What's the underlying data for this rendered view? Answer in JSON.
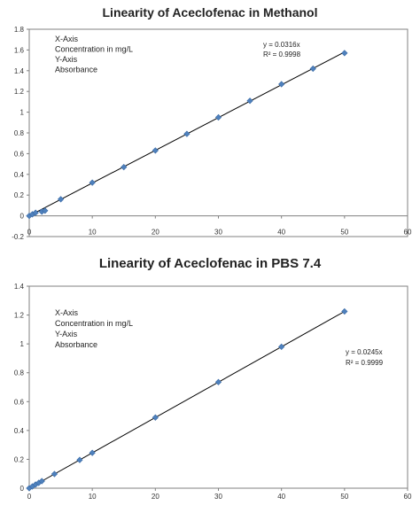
{
  "chart_data": [
    {
      "type": "scatter",
      "title": "Linearity of Aceclofenac in Methanol",
      "xlim": [
        0,
        60
      ],
      "ylim": [
        -0.2,
        1.8
      ],
      "xticks": [
        0,
        10,
        20,
        30,
        40,
        50,
        60
      ],
      "yticks": [
        -0.2,
        0,
        0.2,
        0.4,
        0.6,
        0.8,
        1,
        1.2,
        1.4,
        1.6,
        1.8
      ],
      "ytick_labels": [
        "-0.2",
        "0",
        "0.2",
        "0.4",
        "0.6",
        "0.8",
        "1",
        "1.2",
        "1.4",
        "1.6",
        "1.8"
      ],
      "points": [
        {
          "x": 0,
          "y": 0
        },
        {
          "x": 0.5,
          "y": 0.015
        },
        {
          "x": 1,
          "y": 0.03
        },
        {
          "x": 2,
          "y": 0.04
        },
        {
          "x": 2.5,
          "y": 0.05
        },
        {
          "x": 5,
          "y": 0.16
        },
        {
          "x": 10,
          "y": 0.32
        },
        {
          "x": 15,
          "y": 0.47
        },
        {
          "x": 20,
          "y": 0.63
        },
        {
          "x": 25,
          "y": 0.79
        },
        {
          "x": 30,
          "y": 0.95
        },
        {
          "x": 35,
          "y": 1.11
        },
        {
          "x": 40,
          "y": 1.27
        },
        {
          "x": 45,
          "y": 1.42
        },
        {
          "x": 50,
          "y": 1.57
        }
      ],
      "trendline": {
        "slope": 0.0316,
        "x_end": 50
      },
      "note_lines": [
        "X-Axis",
        "Concentration in mg/L",
        "Y-Axis",
        "Absorbance"
      ],
      "equation_lines": [
        "y = 0.0316x",
        "R² = 0.9998"
      ],
      "grid": false,
      "colors": {
        "marker": "#4f81bd",
        "line": "#000000"
      }
    },
    {
      "type": "scatter",
      "title": "Linearity of Aceclofenac in PBS 7.4",
      "xlim": [
        0,
        60
      ],
      "ylim": [
        0,
        1.4
      ],
      "xticks": [
        0,
        10,
        20,
        30,
        40,
        50,
        60
      ],
      "yticks": [
        0,
        0.2,
        0.4,
        0.6,
        0.8,
        1,
        1.2,
        1.4
      ],
      "ytick_labels": [
        "0",
        "0.2",
        "0.4",
        "0.6",
        "0.8",
        "1",
        "1.2",
        "1.4"
      ],
      "points": [
        {
          "x": 0,
          "y": 0
        },
        {
          "x": 0.5,
          "y": 0.012
        },
        {
          "x": 1,
          "y": 0.025
        },
        {
          "x": 1.5,
          "y": 0.037
        },
        {
          "x": 2,
          "y": 0.049
        },
        {
          "x": 4,
          "y": 0.098
        },
        {
          "x": 8,
          "y": 0.196
        },
        {
          "x": 10,
          "y": 0.245
        },
        {
          "x": 20,
          "y": 0.49
        },
        {
          "x": 30,
          "y": 0.735
        },
        {
          "x": 40,
          "y": 0.98
        },
        {
          "x": 50,
          "y": 1.225
        }
      ],
      "trendline": {
        "slope": 0.0245,
        "x_end": 50
      },
      "note_lines": [
        "X-Axis",
        "Concentration in mg/L",
        "Y-Axis",
        "Absorbance"
      ],
      "equation_lines": [
        "y = 0.0245x",
        "R² = 0.9999"
      ],
      "grid": false,
      "colors": {
        "marker": "#4f81bd",
        "line": "#000000"
      }
    }
  ]
}
